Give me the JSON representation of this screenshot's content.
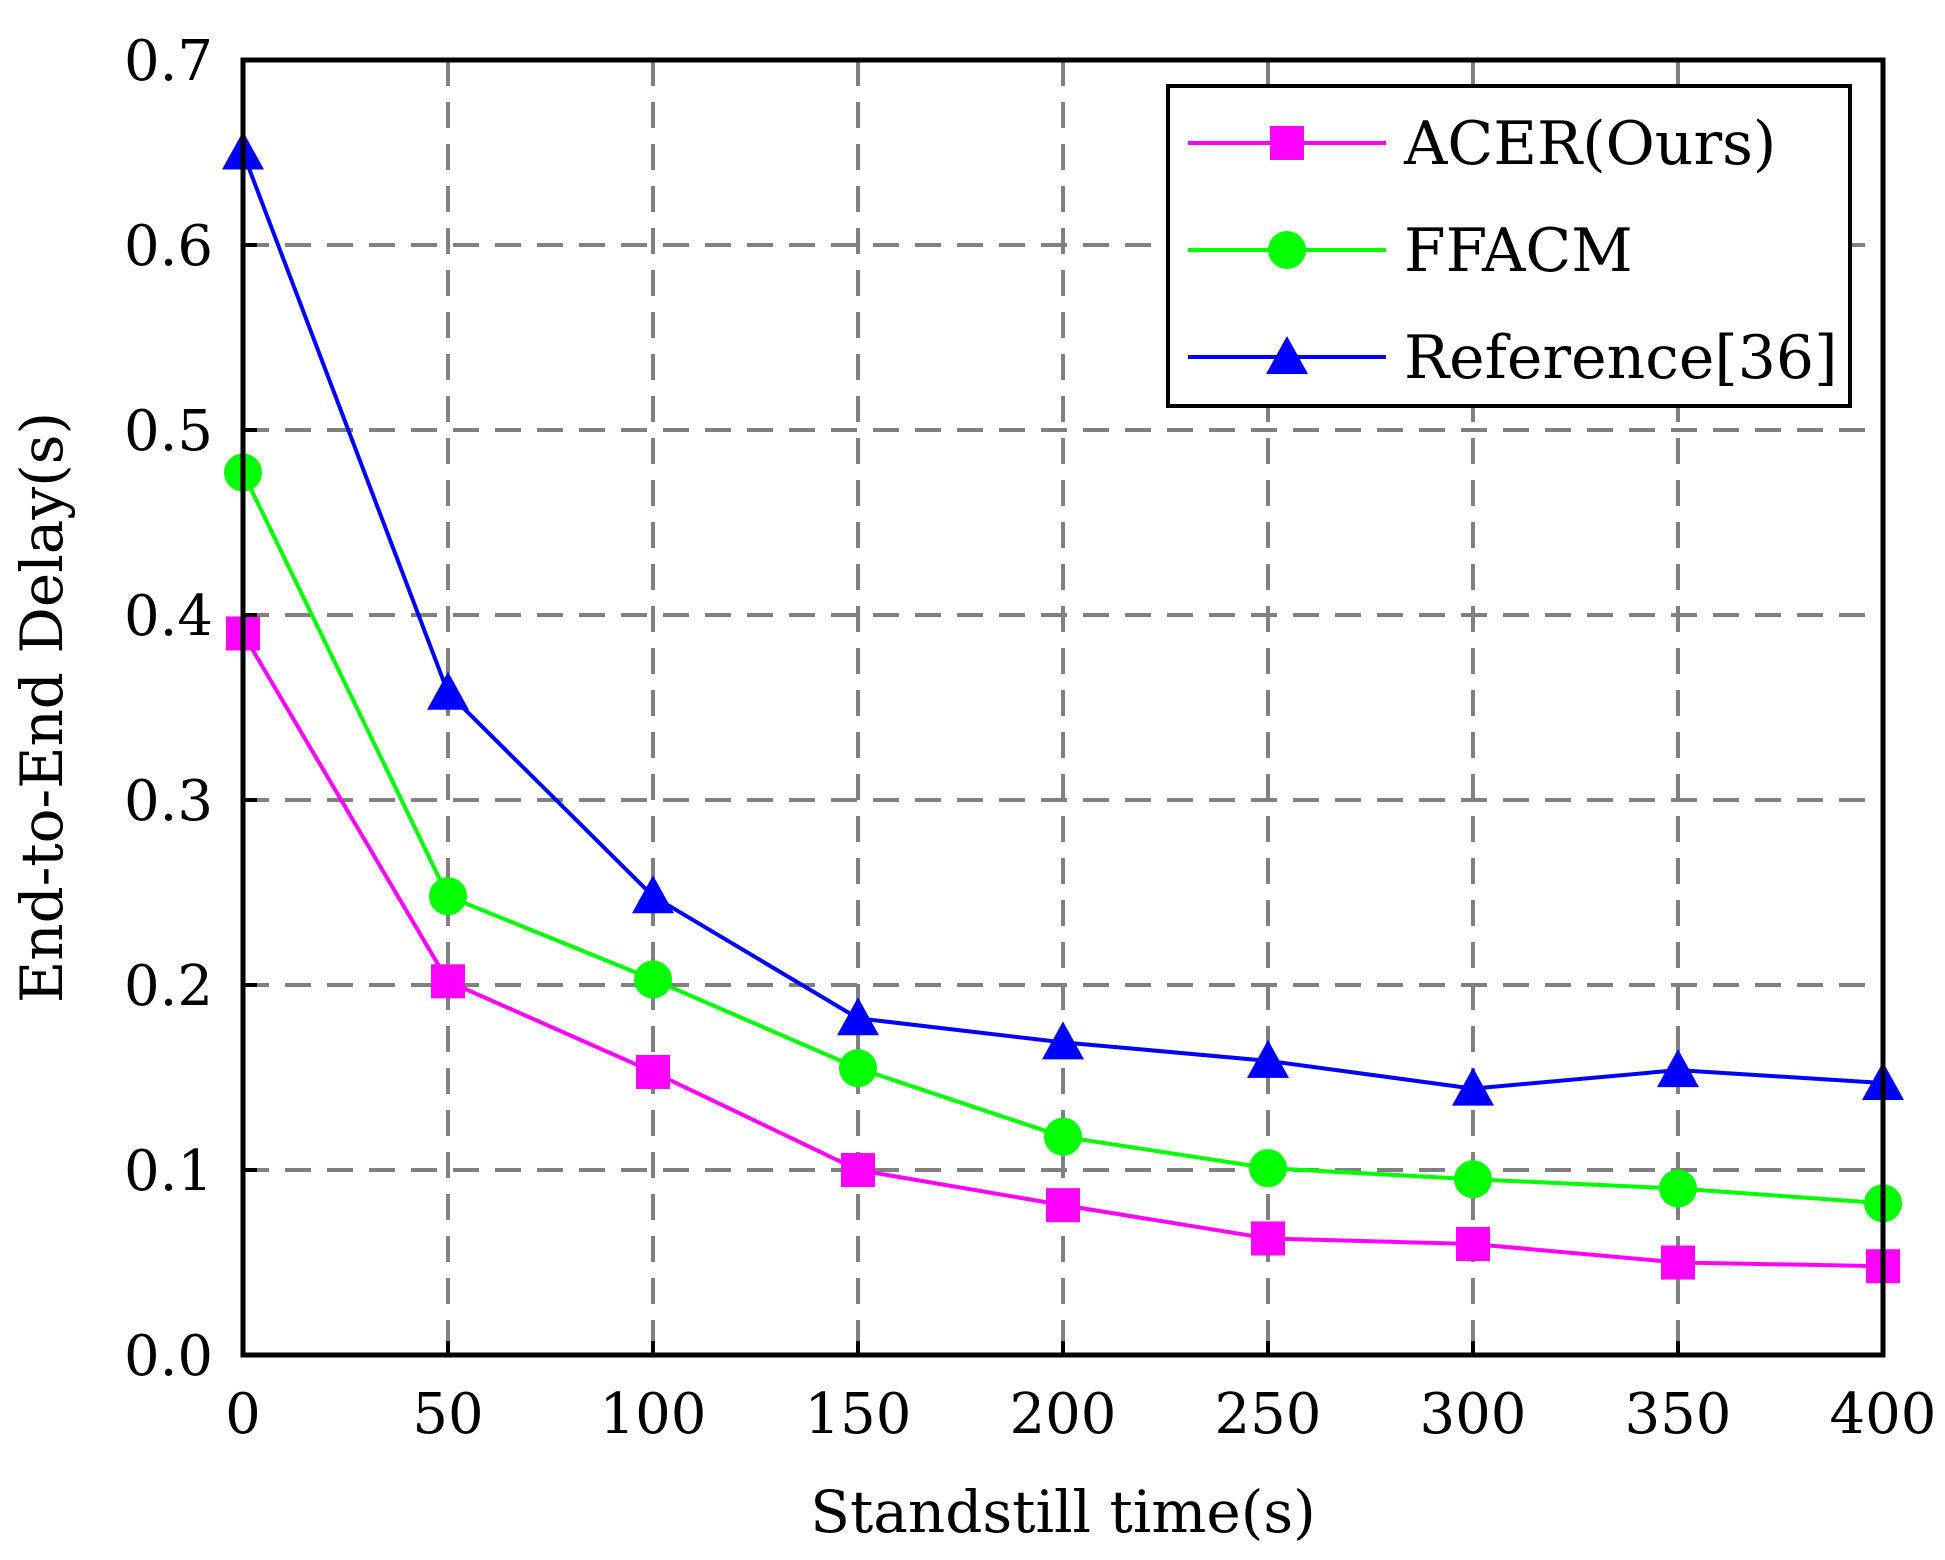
{
  "chart_data": {
    "type": "line",
    "title": "",
    "xlabel": "Standstill time(s)",
    "ylabel": "End-to-End Delay(s)",
    "x": [
      0,
      50,
      100,
      150,
      200,
      250,
      300,
      350,
      400
    ],
    "x_tick_labels": [
      "0",
      "50",
      "100",
      "150",
      "200",
      "250",
      "300",
      "350",
      "400"
    ],
    "y_tick_labels": [
      "0.0",
      "0.1",
      "0.2",
      "0.3",
      "0.4",
      "0.5",
      "0.6",
      "0.7"
    ],
    "xlim": [
      0,
      400
    ],
    "ylim": [
      0,
      0.7
    ],
    "grid": true,
    "legend_position": "top-right",
    "series": [
      {
        "name": "ACER(Ours)",
        "color": "#ff00ff",
        "marker": "square",
        "values": [
          0.39,
          0.202,
          0.153,
          0.1,
          0.081,
          0.063,
          0.06,
          0.05,
          0.048
        ]
      },
      {
        "name": "FFACM",
        "color": "#00ff00",
        "marker": "circle",
        "values": [
          0.477,
          0.248,
          0.203,
          0.155,
          0.118,
          0.101,
          0.095,
          0.09,
          0.082
        ]
      },
      {
        "name": "Reference[36]",
        "color": "#0000ff",
        "marker": "triangle",
        "values": [
          0.65,
          0.358,
          0.248,
          0.182,
          0.169,
          0.159,
          0.144,
          0.154,
          0.147
        ]
      }
    ]
  }
}
